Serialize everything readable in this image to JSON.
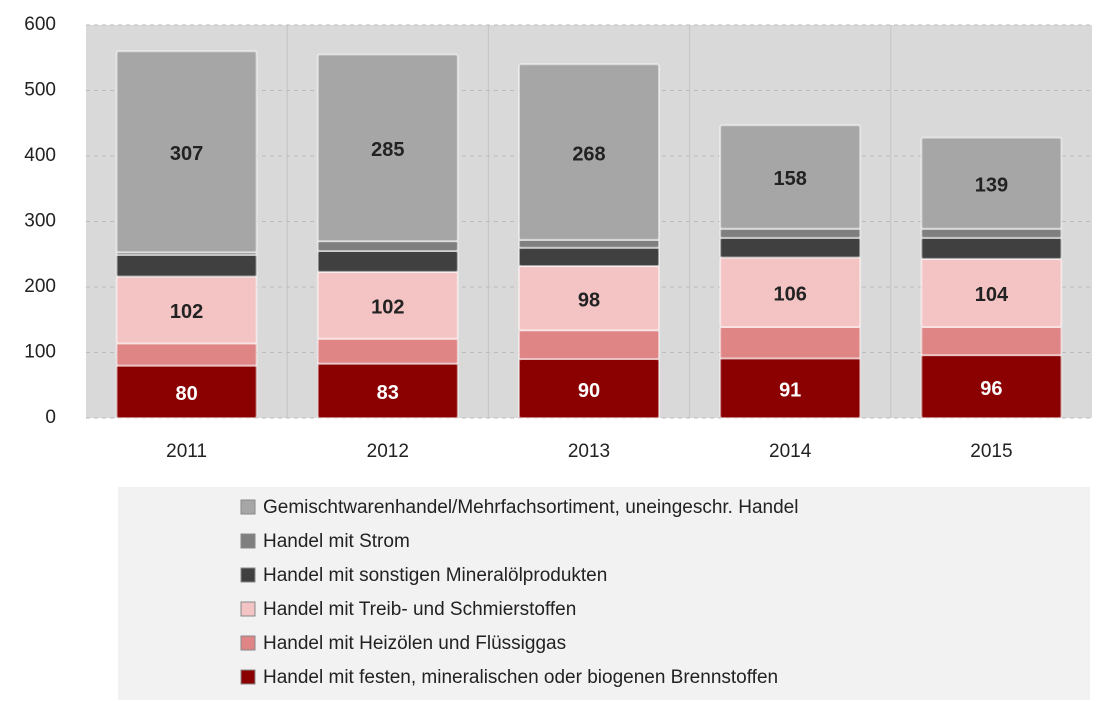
{
  "chart_data": {
    "type": "stacked_bar",
    "categories": [
      "2011",
      "2012",
      "2013",
      "2014",
      "2015"
    ],
    "series": [
      {
        "name": "Handel mit festen, mineralischen oder biogenen Brennstoffen",
        "color": "#8b0000",
        "values": [
          80,
          83,
          90,
          91,
          96
        ],
        "show_labels": true
      },
      {
        "name": "Handel mit Heizölen und Flüssiggas",
        "color": "#e08585",
        "values": [
          34,
          38,
          44,
          48,
          43
        ],
        "show_labels": false
      },
      {
        "name": "Handel mit Treib- und Schmierstoffen",
        "color": "#f4c4c4",
        "values": [
          102,
          102,
          98,
          106,
          104
        ],
        "show_labels": true
      },
      {
        "name": "Handel mit sonstigen Mineralölprodukten",
        "color": "#404040",
        "values": [
          33,
          32,
          28,
          30,
          32
        ],
        "show_labels": false
      },
      {
        "name": "Handel mit Strom",
        "color": "#7f7f7f",
        "values": [
          4,
          15,
          12,
          14,
          14
        ],
        "show_labels": false
      },
      {
        "name": "Gemischtwarenhandel/Mehrfachsortiment, uneingeschr. Handel",
        "color": "#a6a6a6",
        "values": [
          307,
          285,
          268,
          158,
          139
        ],
        "show_labels": true
      }
    ],
    "ylim": [
      0,
      600
    ],
    "yticks": [
      0,
      100,
      200,
      300,
      400,
      500,
      600
    ],
    "grid": true
  }
}
